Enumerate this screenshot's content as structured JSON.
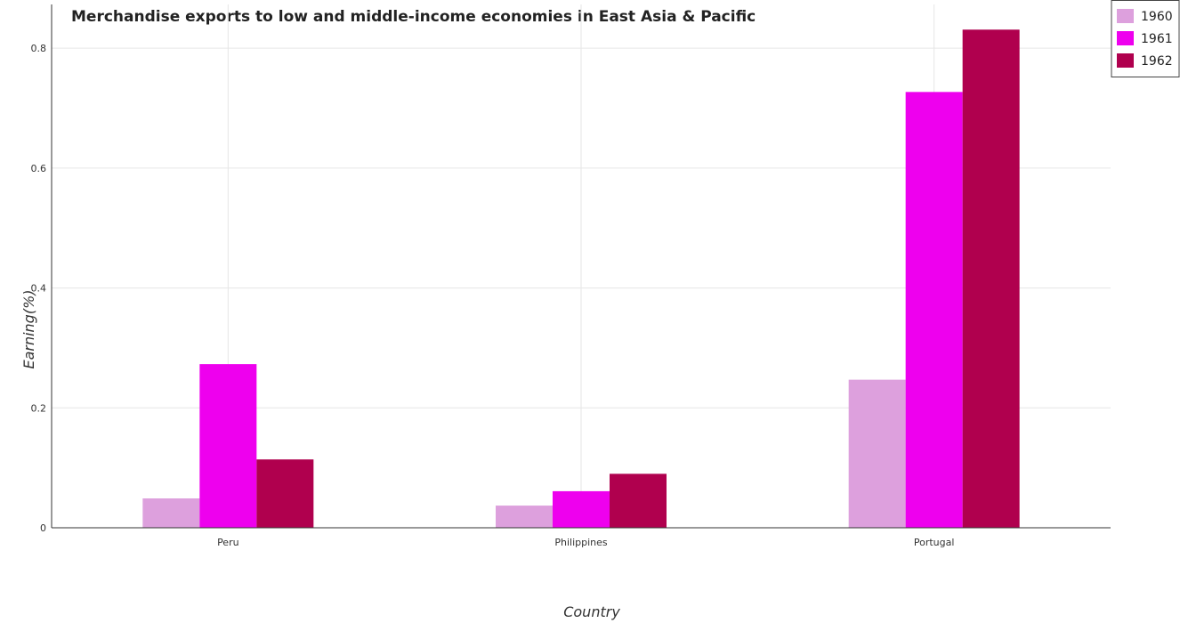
{
  "chart_data": {
    "type": "bar",
    "title": "Merchandise exports to low and middle-income economies in East Asia & Pacific",
    "xlabel": "Country",
    "ylabel": "Earning(%)",
    "categories": [
      "Peru",
      "Philippines",
      "Portugal"
    ],
    "series": [
      {
        "name": "1960",
        "color": "#dda0dd",
        "values": [
          0.049,
          0.037,
          0.247
        ]
      },
      {
        "name": "1961",
        "color": "#ee00ee",
        "values": [
          0.273,
          0.061,
          0.727
        ]
      },
      {
        "name": "1962",
        "color": "#b0004e",
        "values": [
          0.114,
          0.09,
          0.831
        ]
      }
    ],
    "yticks": [
      "0",
      "0.2",
      "0.4",
      "0.6",
      "0.8"
    ],
    "ytick_values": [
      0,
      0.2,
      0.4,
      0.6,
      0.8
    ],
    "ylim": [
      0,
      0.873
    ],
    "grid": true,
    "legend_position": "top-right"
  }
}
